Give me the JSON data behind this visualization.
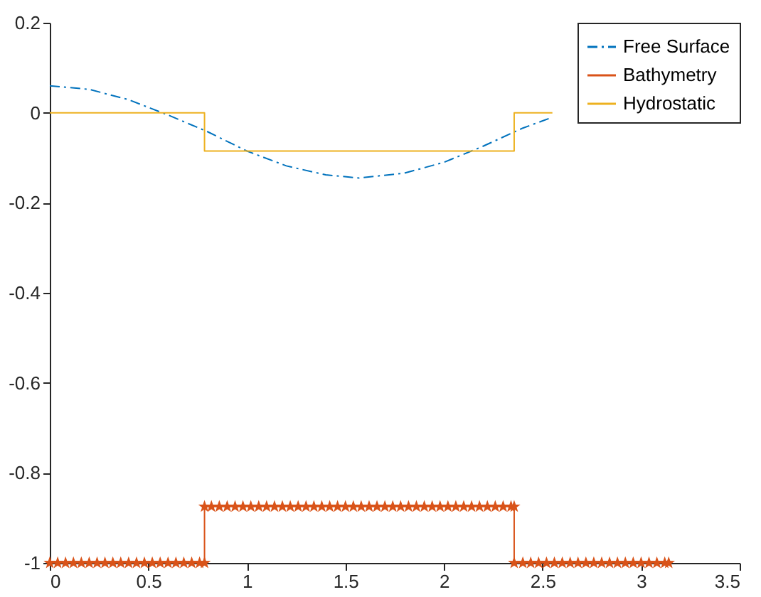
{
  "chart_data": {
    "type": "line",
    "xlim": [
      0,
      3.5
    ],
    "xticks": [
      0,
      0.5,
      1,
      1.5,
      2,
      2.5,
      3,
      3.5
    ],
    "ylim": [
      -1,
      0.2
    ],
    "yticks": [
      -1,
      -0.8,
      -0.6,
      -0.4,
      -0.2,
      0,
      0.2
    ],
    "grid": false,
    "legend": "top right",
    "series": [
      {
        "name": "Free Surface",
        "color": "#0072bd",
        "line_style": "dashed",
        "marker": "none",
        "x": [
          0,
          0.2,
          0.4,
          0.6,
          0.8,
          1.0,
          1.2,
          1.4,
          1.57,
          1.8,
          2.0,
          2.2,
          2.4,
          2.55
        ],
        "values": [
          0.06,
          0.052,
          0.029,
          -0.005,
          -0.042,
          -0.085,
          -0.118,
          -0.138,
          -0.145,
          -0.134,
          -0.11,
          -0.074,
          -0.034,
          -0.01
        ]
      },
      {
        "name": "Bathymetry",
        "color": "#d95319",
        "line_style": "solid",
        "marker": "star",
        "x": [
          0,
          0.04,
          0.08,
          0.12,
          0.16,
          0.2,
          0.24,
          0.28,
          0.32,
          0.36,
          0.4,
          0.44,
          0.48,
          0.52,
          0.56,
          0.6,
          0.64,
          0.68,
          0.72,
          0.76,
          0.785,
          0.785,
          0.82,
          0.86,
          0.9,
          0.94,
          0.98,
          1.02,
          1.06,
          1.1,
          1.14,
          1.18,
          1.22,
          1.26,
          1.3,
          1.34,
          1.38,
          1.42,
          1.46,
          1.5,
          1.54,
          1.58,
          1.62,
          1.66,
          1.7,
          1.74,
          1.78,
          1.82,
          1.86,
          1.9,
          1.94,
          1.98,
          2.02,
          2.06,
          2.1,
          2.14,
          2.18,
          2.22,
          2.26,
          2.3,
          2.34,
          2.356,
          2.356,
          2.4,
          2.44,
          2.48,
          2.52,
          2.56,
          2.6,
          2.64,
          2.68,
          2.72,
          2.76,
          2.8,
          2.84,
          2.88,
          2.92,
          2.96,
          3.0,
          3.04,
          3.08,
          3.12,
          3.14
        ],
        "values": [
          -1,
          -1,
          -1,
          -1,
          -1,
          -1,
          -1,
          -1,
          -1,
          -1,
          -1,
          -1,
          -1,
          -1,
          -1,
          -1,
          -1,
          -1,
          -1,
          -1,
          -1,
          -0.875,
          -0.875,
          -0.875,
          -0.875,
          -0.875,
          -0.875,
          -0.875,
          -0.875,
          -0.875,
          -0.875,
          -0.875,
          -0.875,
          -0.875,
          -0.875,
          -0.875,
          -0.875,
          -0.875,
          -0.875,
          -0.875,
          -0.875,
          -0.875,
          -0.875,
          -0.875,
          -0.875,
          -0.875,
          -0.875,
          -0.875,
          -0.875,
          -0.875,
          -0.875,
          -0.875,
          -0.875,
          -0.875,
          -0.875,
          -0.875,
          -0.875,
          -0.875,
          -0.875,
          -0.875,
          -0.875,
          -0.875,
          -1,
          -1,
          -1,
          -1,
          -1,
          -1,
          -1,
          -1,
          -1,
          -1,
          -1,
          -1,
          -1,
          -1,
          -1,
          -1,
          -1,
          -1,
          -1,
          -1,
          -1
        ]
      },
      {
        "name": "Hydrostatic",
        "color": "#edb120",
        "line_style": "solid",
        "marker": "none",
        "x": [
          0,
          0.785,
          0.785,
          2.356,
          2.356,
          2.55
        ],
        "values": [
          0,
          0,
          -0.085,
          -0.085,
          0,
          0
        ]
      }
    ]
  }
}
